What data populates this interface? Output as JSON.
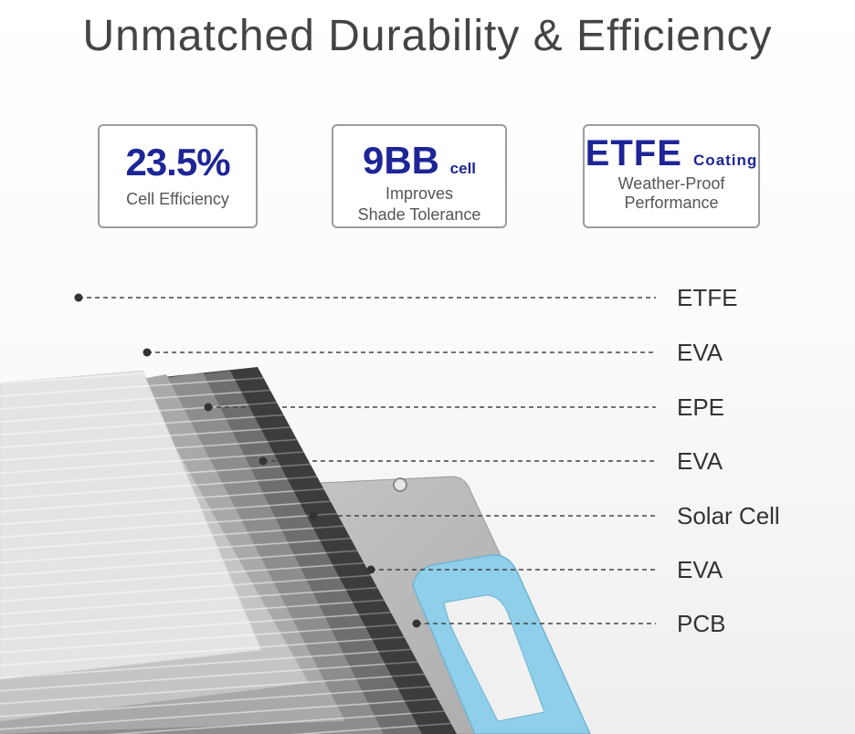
{
  "title": "Unmatched Durability & Efficiency",
  "badges": [
    {
      "headline": "23.5%",
      "suffix": "",
      "lines": [
        "Cell Efficiency"
      ]
    },
    {
      "headline": "9BB",
      "suffix": "cell",
      "lines": [
        "Improves",
        "Shade Tolerance"
      ]
    },
    {
      "headline": "ETFE",
      "suffix": "Coating",
      "lines": [
        "Weather-Proof",
        "Performance"
      ]
    }
  ],
  "layers": [
    "ETFE",
    "EVA",
    "EPE",
    "EVA",
    "Solar Cell",
    "EVA",
    "PCB"
  ],
  "colors": {
    "title": "#444444",
    "headline": "#1e2596",
    "handle": "#8fcfe9",
    "fabric": "#b9b9b9"
  }
}
